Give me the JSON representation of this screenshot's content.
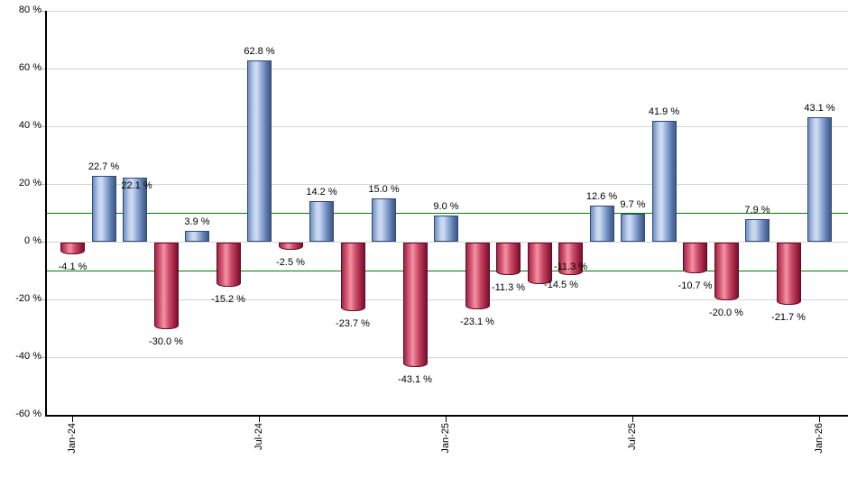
{
  "chart_data": {
    "type": "bar",
    "title": "",
    "xlabel": "",
    "ylabel": "",
    "ylim": [
      -60,
      80
    ],
    "grid": true,
    "threshold_lines": [
      10,
      -10
    ],
    "y_ticks": [
      {
        "value": 80,
        "label": "80 %"
      },
      {
        "value": 60,
        "label": "60 %"
      },
      {
        "value": 40,
        "label": "40 %"
      },
      {
        "value": 20,
        "label": "20 %"
      },
      {
        "value": 0,
        "label": "0 %"
      },
      {
        "value": -20,
        "label": "-20 %"
      },
      {
        "value": -40,
        "label": "-40 %"
      },
      {
        "value": -60,
        "label": "-60 %"
      }
    ],
    "x_tick_labels": [
      {
        "bar_index": 0,
        "label": "Jan-24"
      },
      {
        "bar_index": 6,
        "label": "Jul-24"
      },
      {
        "bar_index": 12,
        "label": "Jan-25"
      },
      {
        "bar_index": 18,
        "label": "Jul-25"
      },
      {
        "bar_index": 24,
        "label": "Jan-26"
      }
    ],
    "values": [
      -4.1,
      22.7,
      22.1,
      -30.0,
      3.9,
      -15.2,
      62.8,
      -2.5,
      14.2,
      -23.7,
      15.0,
      -43.1,
      9.0,
      -23.1,
      -11.3,
      -14.5,
      -11.3,
      12.6,
      9.7,
      41.9,
      -10.7,
      -20.0,
      7.9,
      -21.7,
      43.1
    ],
    "bar_labels": [
      "-4.1 %",
      "22.7 %",
      "22.1 %",
      "-30.0 %",
      "3.9 %",
      "-15.2 %",
      "62.8 %",
      "-2.5 %",
      "14.2 %",
      "-23.7 %",
      "15.0 %",
      "-43.1 %",
      "9.0 %",
      "-23.1 %",
      "-11.3 %",
      "-14.5 %",
      "-11.3 %",
      "12.6 %",
      "9.7 %",
      "41.9 %",
      "-10.7 %",
      "-20.0 %",
      "7.9 %",
      "-21.7 %",
      "43.1 %"
    ],
    "label_offsets": {
      "2": [
        2,
        19
      ],
      "15": [
        24,
        -13
      ],
      "16": [
        0,
        -23
      ]
    },
    "colors": {
      "positive_bar_gradient": [
        "#6e8dc0",
        "#c3d3ed",
        "#cfdcf2",
        "#8aa6d4",
        "#5c78aa",
        "#3e5886"
      ],
      "positive_bar_border": "#2e4a78",
      "negative_bar_gradient": [
        "#a02545",
        "#e0677f",
        "#f493a7",
        "#c84a66",
        "#a52747",
        "#7a0f2e"
      ],
      "negative_bar_border": "#5c0c26",
      "threshold_line": "#008000",
      "grid_line": "#d4d4d4",
      "axis_tick": "#b3b3b3",
      "axis_line": "#000000",
      "text": "#000000",
      "background": "#ffffff"
    }
  }
}
